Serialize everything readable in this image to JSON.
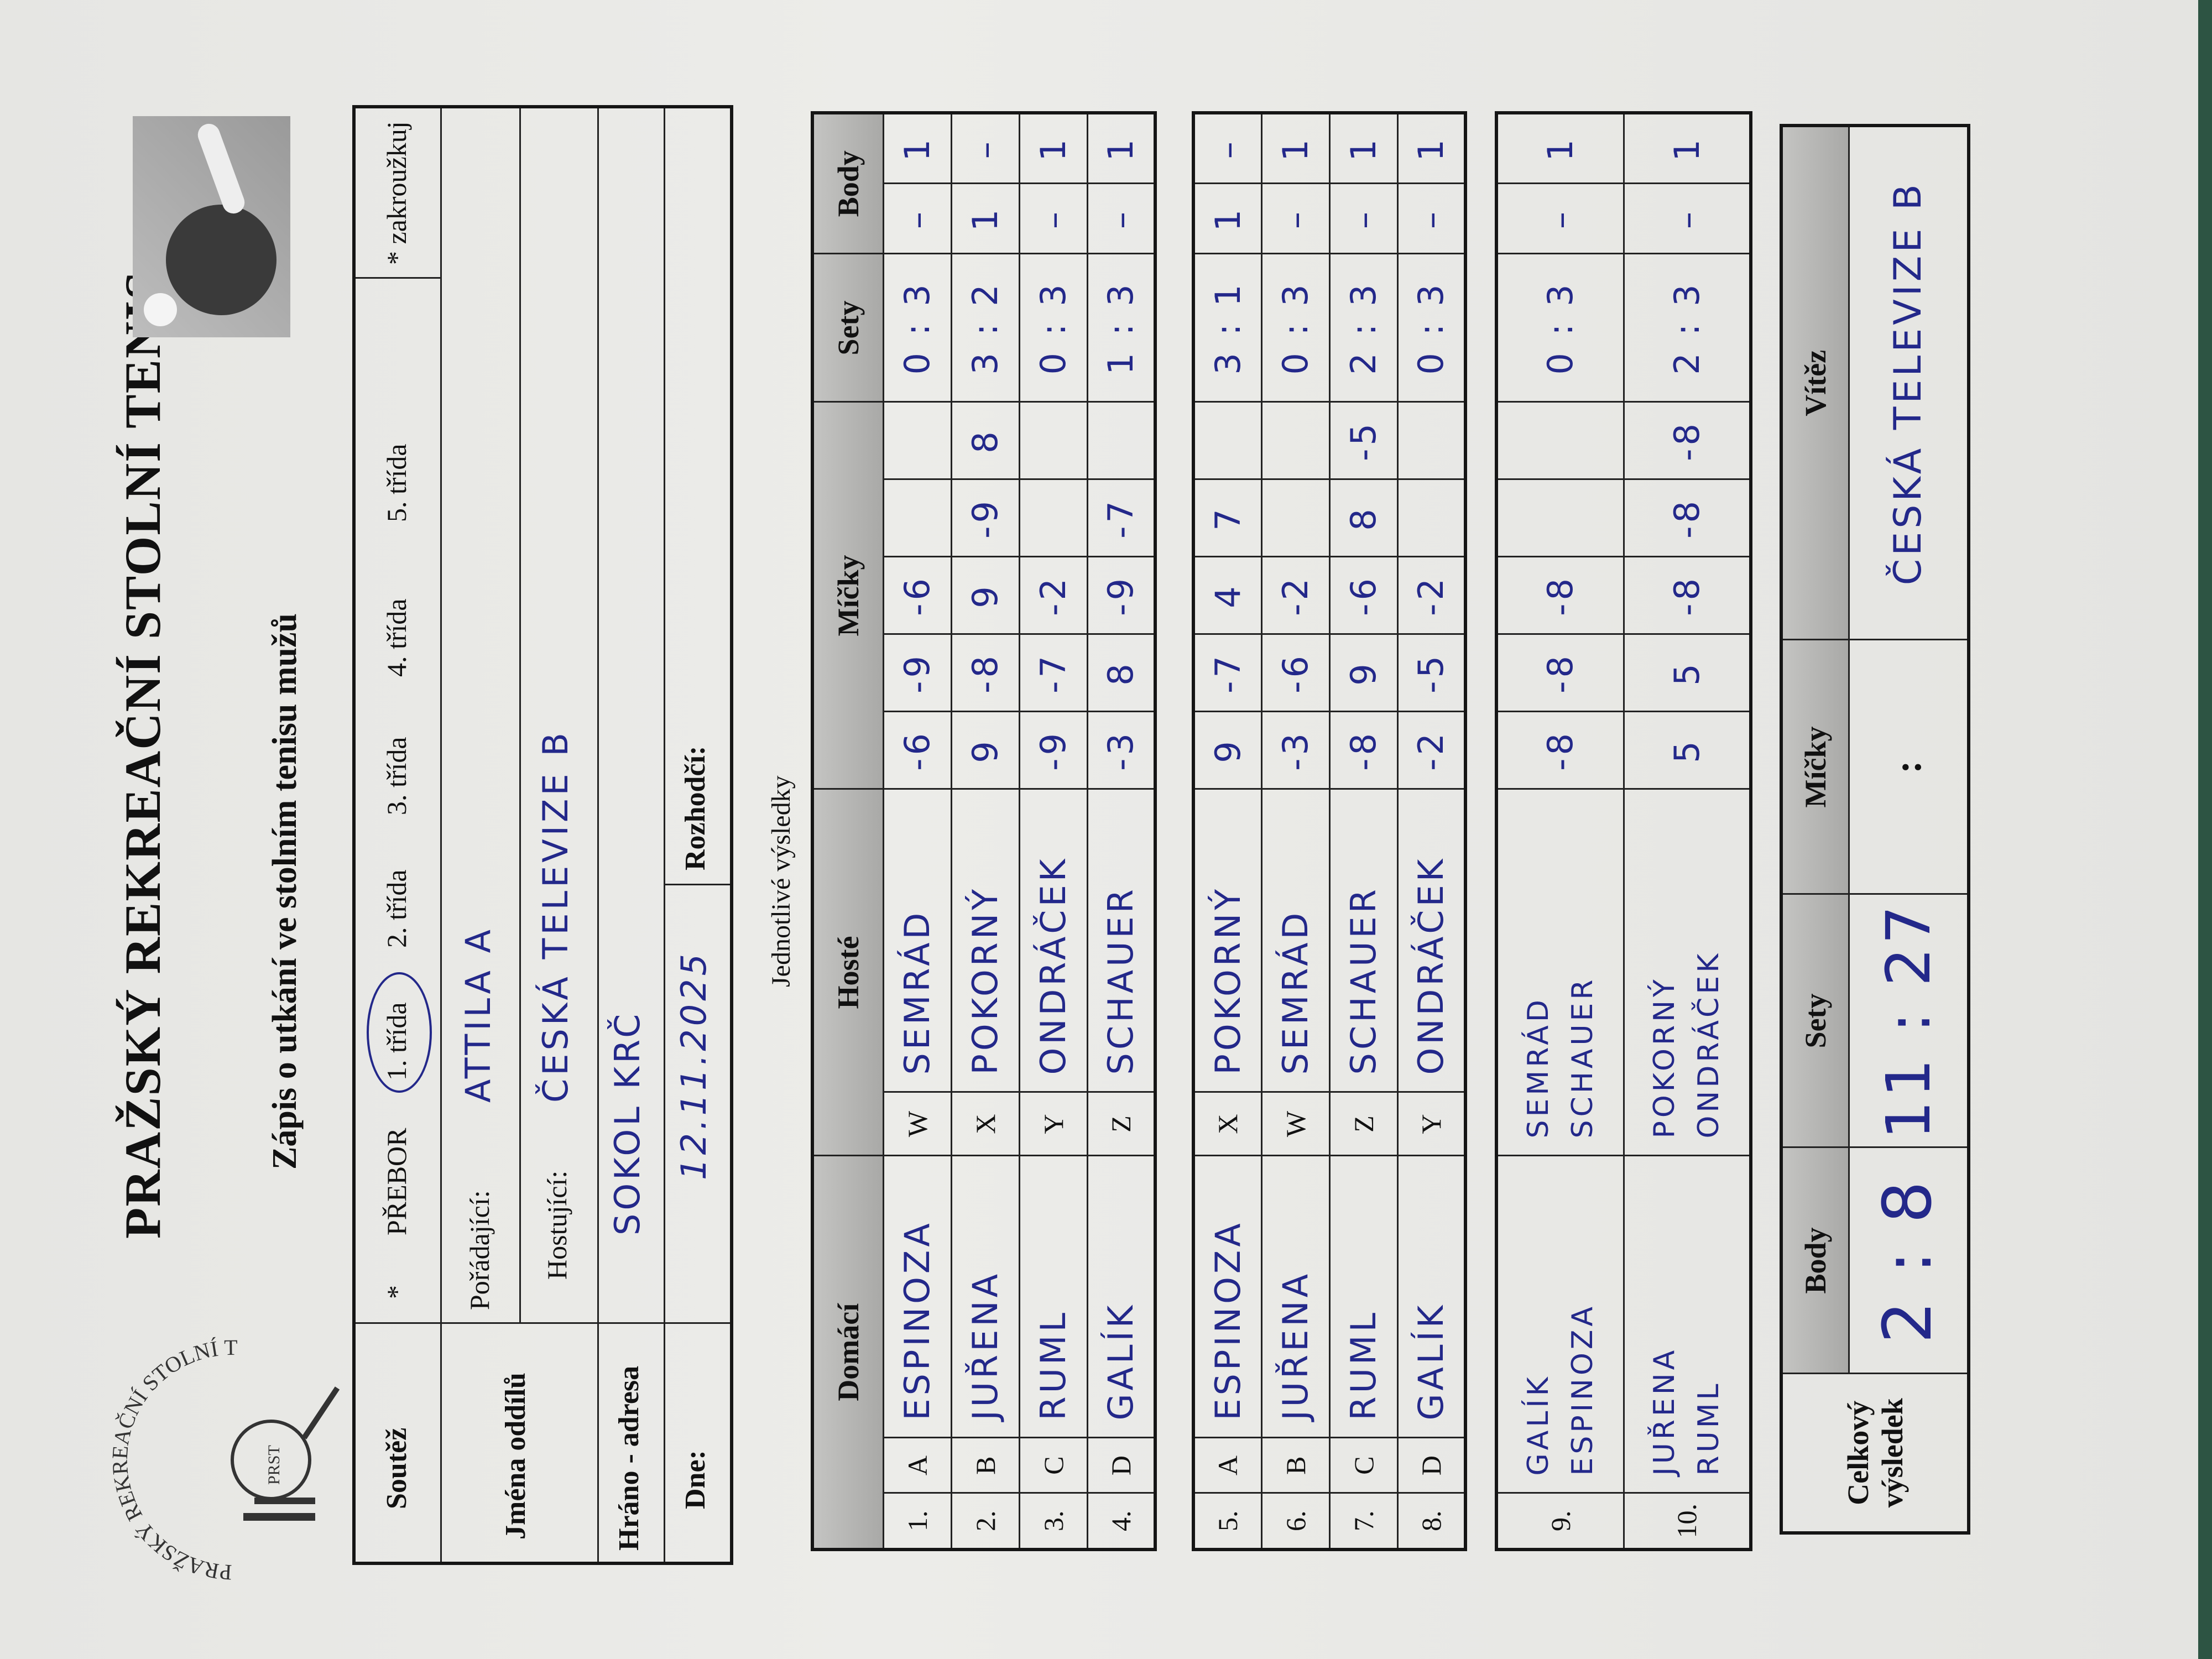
{
  "header": {
    "title": "PRAŽSKÝ REKREAČNÍ STOLNÍ TENIS",
    "subtitle": "Zápis o utkání ve stolním tenisu mužů",
    "logo_text": "PRAŽSKÝ REKREAČNÍ STOLNÍ TENIS",
    "logo_abbrev": "PRST"
  },
  "info": {
    "soutez_label": "Soutěž",
    "star": "*",
    "options": [
      "PŘEBOR",
      "1. třída",
      "2. třída",
      "3. třída",
      "4. třída",
      "5. třída"
    ],
    "selected_option": "1. třída",
    "circle_note": "* zakroužkuj",
    "jmena_label": "Jména oddílů",
    "poradajici_label": "Pořádající:",
    "poradajici_value": "ATTILA A",
    "hostujici_label": "Hostující:",
    "hostujici_value": "ČESKÁ TELEVIZE B",
    "hrano_label": "Hráno - adresa",
    "hrano_value": "SOKOL KRČ",
    "dne_label": "Dne:",
    "dne_value": "12.11.2025",
    "rozhodci_label": "Rozhodčí:",
    "rozhodci_value": ""
  },
  "results": {
    "caption": "Jednotlivé výsledky",
    "columns": {
      "domaci": "Domácí",
      "hoste": "Hosté",
      "micky": "Míčky",
      "sety": "Sety",
      "body": "Body"
    },
    "singles": [
      {
        "no": "1.",
        "hl": "A",
        "home": "ESPINOZA",
        "al": "W",
        "away": "SEMRÁD",
        "balls": [
          "-6",
          "-9",
          "-6",
          "",
          ""
        ],
        "sets": "0 : 3",
        "body": [
          "–",
          "1"
        ]
      },
      {
        "no": "2.",
        "hl": "B",
        "home": "JUŘENA",
        "al": "X",
        "away": "POKORNÝ",
        "balls": [
          "9",
          "-8",
          "9",
          "-9",
          "8"
        ],
        "sets": "3 : 2",
        "body": [
          "1",
          "–"
        ]
      },
      {
        "no": "3.",
        "hl": "C",
        "home": "RUML",
        "al": "Y",
        "away": "ONDRÁČEK",
        "balls": [
          "-9",
          "-7",
          "-2",
          "",
          ""
        ],
        "sets": "0 : 3",
        "body": [
          "–",
          "1"
        ]
      },
      {
        "no": "4.",
        "hl": "D",
        "home": "GALÍK",
        "al": "Z",
        "away": "SCHAUER",
        "balls": [
          "-3",
          "8",
          "-9",
          "-7",
          ""
        ],
        "sets": "1 : 3",
        "body": [
          "–",
          "1"
        ]
      },
      {
        "no": "5.",
        "hl": "A",
        "home": "ESPINOZA",
        "al": "X",
        "away": "POKORNÝ",
        "balls": [
          "9",
          "-7",
          "4",
          "7",
          ""
        ],
        "sets": "3 : 1",
        "body": [
          "1",
          "–"
        ]
      },
      {
        "no": "6.",
        "hl": "B",
        "home": "JUŘENA",
        "al": "W",
        "away": "SEMRÁD",
        "balls": [
          "-3",
          "-6",
          "-2",
          "",
          ""
        ],
        "sets": "0 : 3",
        "body": [
          "–",
          "1"
        ]
      },
      {
        "no": "7.",
        "hl": "C",
        "home": "RUML",
        "al": "Z",
        "away": "SCHAUER",
        "balls": [
          "-8",
          "9",
          "-6",
          "8",
          "-5"
        ],
        "sets": "2 : 3",
        "body": [
          "–",
          "1"
        ]
      },
      {
        "no": "8.",
        "hl": "D",
        "home": "GALÍK",
        "al": "Y",
        "away": "ONDRÁČEK",
        "balls": [
          "-2",
          "-5",
          "-2",
          "",
          ""
        ],
        "sets": "0 : 3",
        "body": [
          "–",
          "1"
        ]
      }
    ],
    "doubles": [
      {
        "no": "9.",
        "home": [
          "GALÍK",
          "ESPINOZA"
        ],
        "away": [
          "SEMRÁD",
          "SCHAUER"
        ],
        "balls": [
          "-8",
          "-8",
          "-8",
          "",
          ""
        ],
        "sets": "0 : 3",
        "body": [
          "–",
          "1"
        ]
      },
      {
        "no": "10.",
        "home": [
          "JUŘENA",
          "RUML"
        ],
        "away": [
          "POKORNÝ",
          "ONDRÁČEK"
        ],
        "balls": [
          "5",
          "5",
          "-8",
          "-8",
          "-8"
        ],
        "sets": "2 : 3",
        "body": [
          "–",
          "1"
        ]
      }
    ]
  },
  "total": {
    "label": "Celkový výsledek",
    "body_label": "Body",
    "body_value": "2 : 8",
    "sety_label": "Sety",
    "sety_value": "11 : 27",
    "micky_label": "Míčky",
    "micky_value": ":",
    "vitez_label": "Vítěz",
    "vitez_value": "ČESKÁ TELEVIZE B"
  },
  "colors": {
    "ink": "#23288a",
    "paper": "#e9e9e6",
    "header_gray": "#b5b5b3",
    "background": "#2d5443"
  }
}
